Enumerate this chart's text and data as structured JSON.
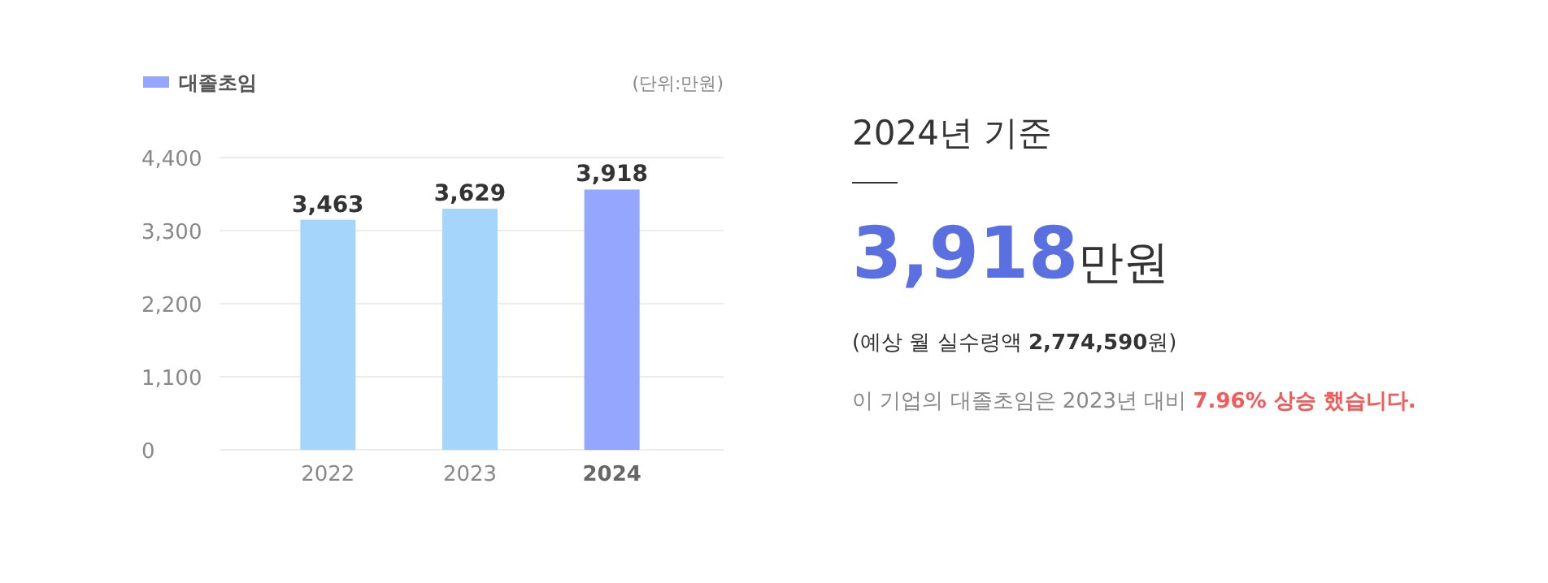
{
  "chart_data": [
    {
      "type": "bar",
      "categories": [
        "2022",
        "2023",
        "2024"
      ],
      "series": [
        {
          "name": "대졸초임",
          "color": "#95a6ff",
          "values": [
            3463,
            3629,
            3918
          ],
          "colors": [
            "#a6d5fc",
            "#a6d5fc",
            "#95a6ff"
          ],
          "value_labels": [
            "3,463",
            "3,629",
            "3,918"
          ]
        }
      ],
      "ylim": [
        0,
        4400
      ],
      "yticks": [
        {
          "value": 0,
          "label": "0"
        },
        {
          "value": 1100,
          "label": "1,100"
        },
        {
          "value": 2200,
          "label": "2,200"
        },
        {
          "value": 3300,
          "label": "3,300"
        },
        {
          "value": 4400,
          "label": "4,400"
        }
      ],
      "grid": "y",
      "legend": "top left",
      "annotations": [
        "(단위:만원)"
      ]
    },
    {
      "type": "other",
      "title": "2024년 기준",
      "annotations": [
        "3,918",
        "만원",
        "(예상 월 실수령액 ",
        "2,774,590",
        "원)",
        "이 기업의 대졸초임은 2023년 대비 ",
        "7.96% 상승 했습니다."
      ]
    }
  ]
}
